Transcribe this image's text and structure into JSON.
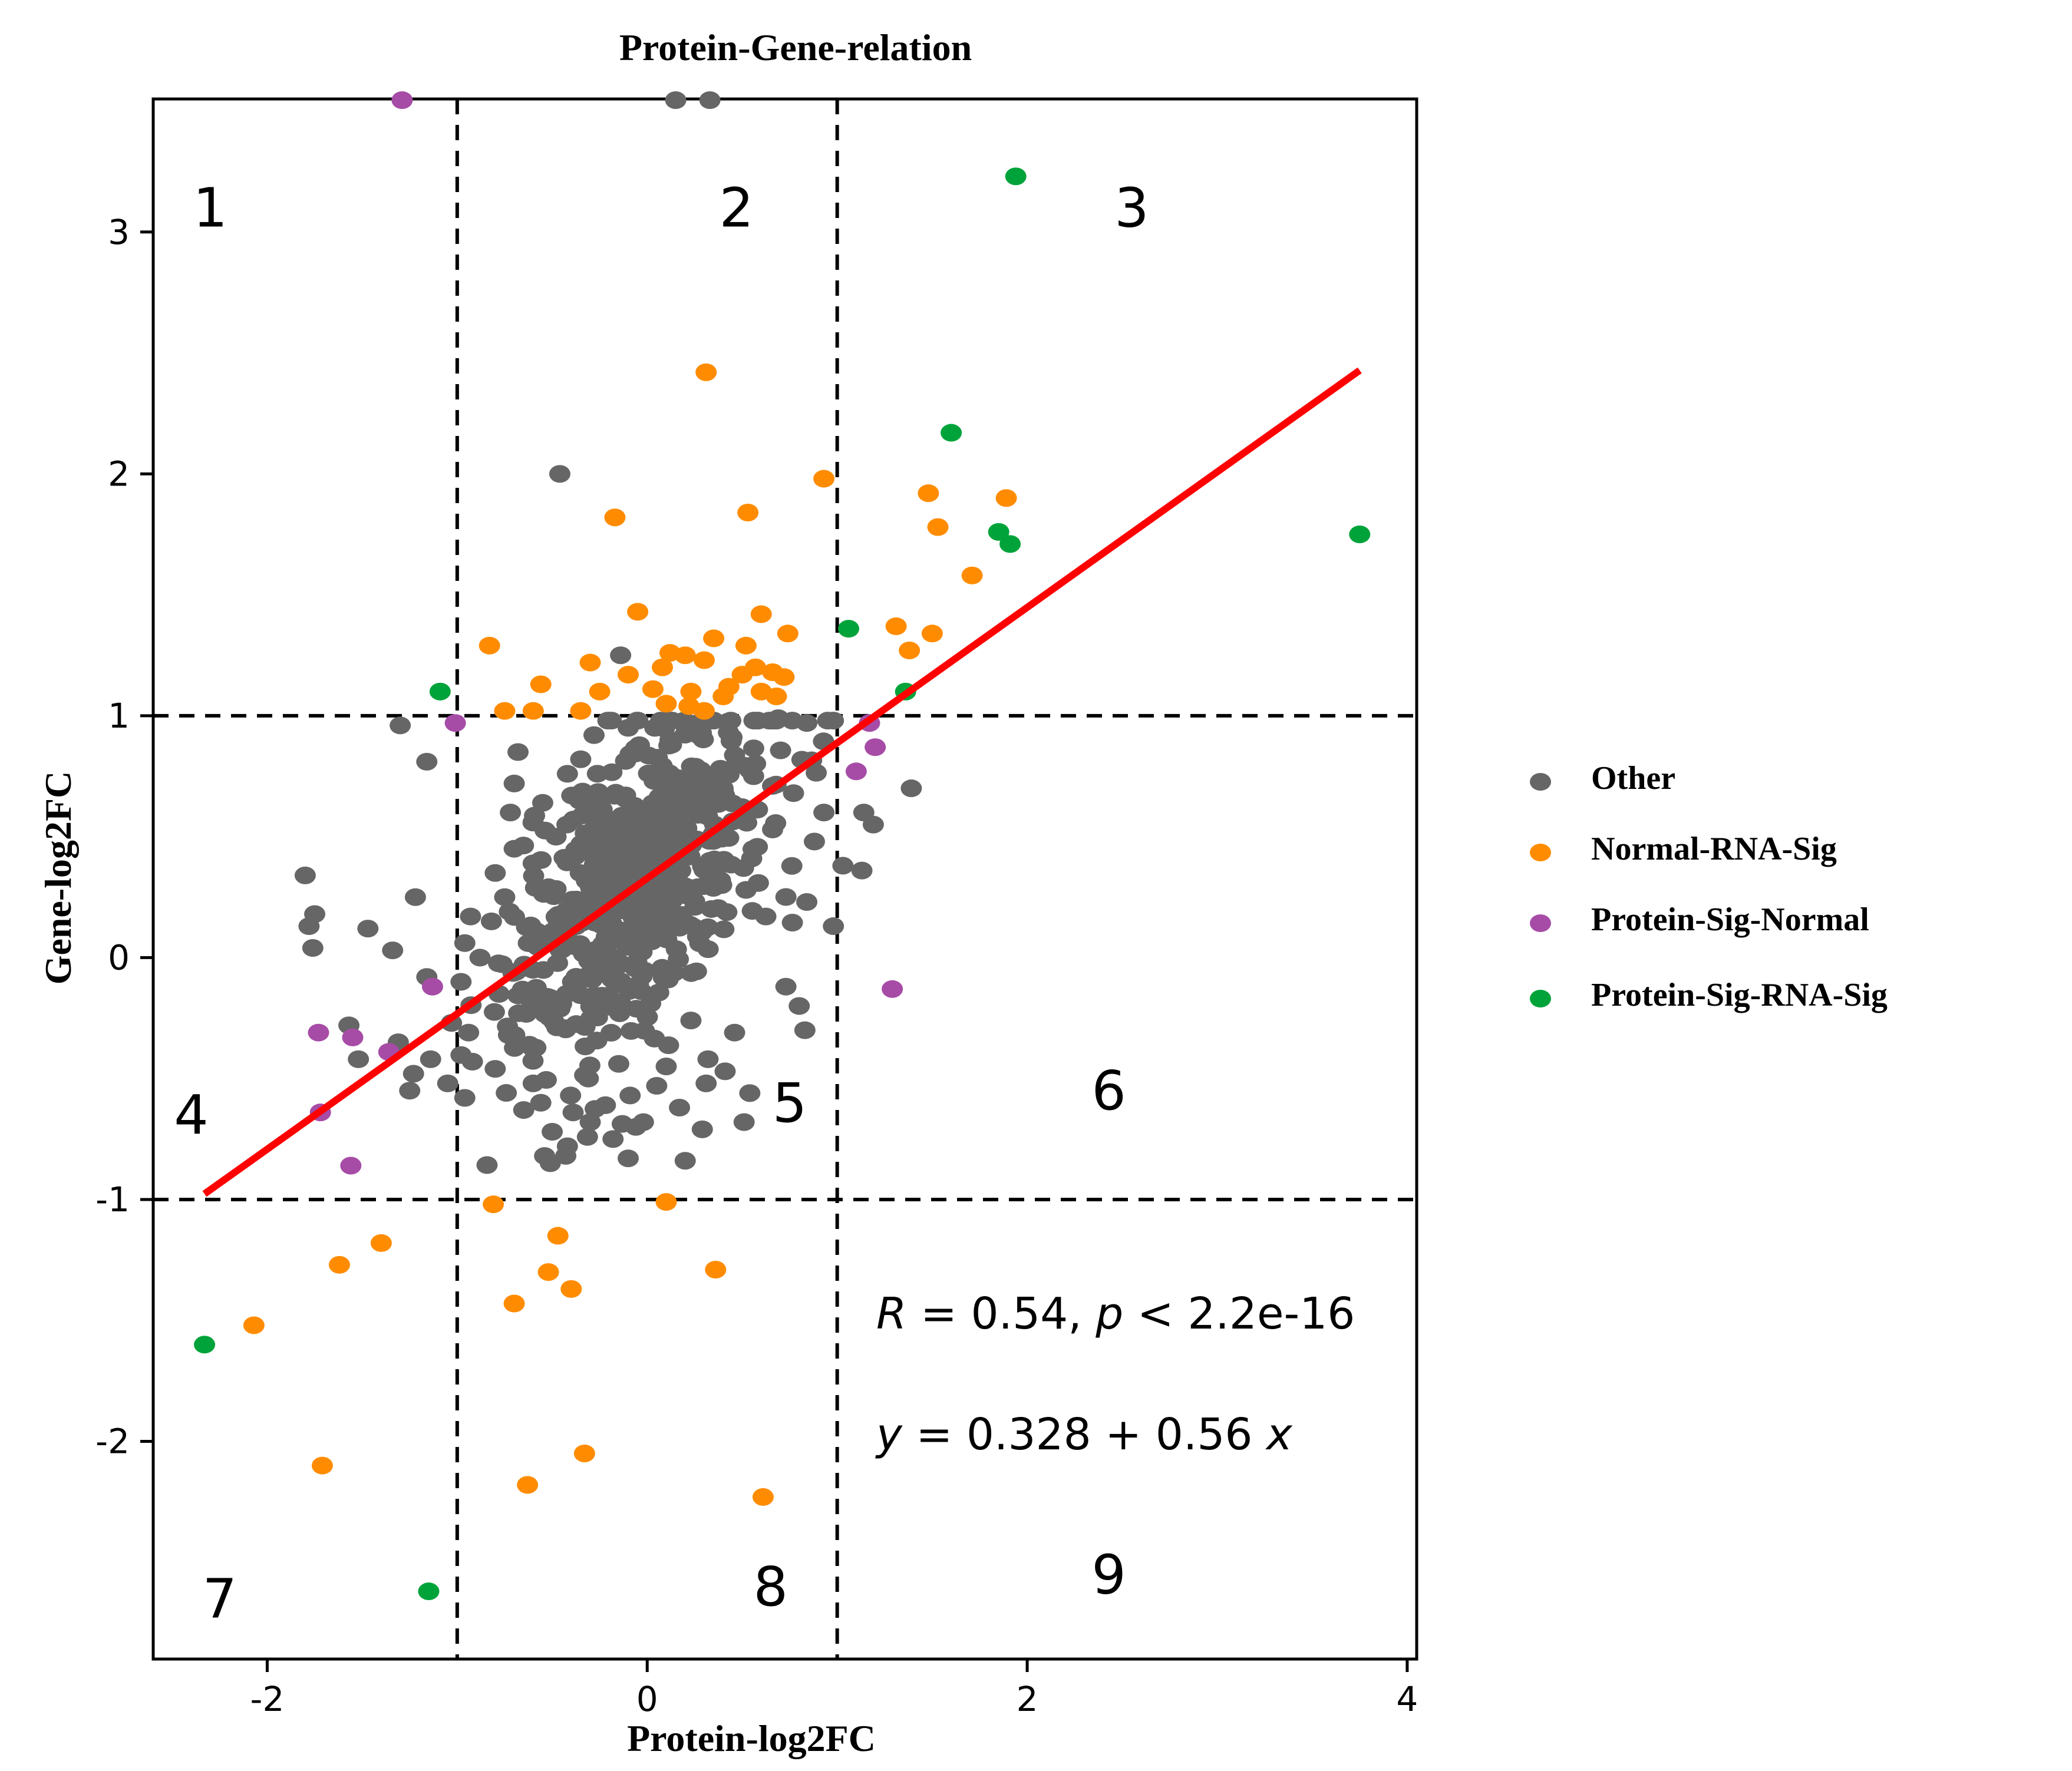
{
  "chart_data": {
    "type": "scatter",
    "title": "Protein-Gene-relation",
    "xlabel": "Protein-log2FC",
    "ylabel": "Gene-log2FC",
    "xlim": [
      -2.6,
      4.05
    ],
    "ylim": [
      -2.9,
      3.55
    ],
    "xticks": [
      -2,
      0,
      2,
      4
    ],
    "yticks": [
      -2,
      -1,
      0,
      1,
      2,
      3
    ],
    "xtick_labels": [
      "-2",
      "0",
      "2",
      "4"
    ],
    "ytick_labels": [
      "-2",
      "-1",
      "0",
      "1",
      "2",
      "3"
    ],
    "grid": false,
    "thresholds": {
      "x": [
        -1,
        1
      ],
      "y": [
        -1,
        1
      ]
    },
    "legend_position": "right",
    "colors": {
      "Other": "#666666",
      "Normal-RNA-Sig": "#ff8c00",
      "Protein-Sig-Normal": "#a64ca6",
      "Protein-Sig-RNA-Sig": "#00a33a",
      "regression": "#ff0000",
      "threshold": "#000000"
    },
    "regression": {
      "intercept": 0.328,
      "slope": 0.56,
      "x_range": [
        -2.33,
        3.75
      ]
    },
    "annotations": {
      "stats_R_symbol": "R",
      "stats_R_rest": " = 0.54, ",
      "stats_p_symbol": "p",
      "stats_p_rest": " < 2.2e-16",
      "eq_y_symbol": "y",
      "eq_mid": " = 0.328 + 0.56 ",
      "eq_x_symbol": "x"
    },
    "quadrant_labels": [
      {
        "text": "1",
        "x": -2.3,
        "y": 3.1
      },
      {
        "text": "2",
        "x": 0.47,
        "y": 3.1
      },
      {
        "text": "3",
        "x": 2.55,
        "y": 3.1
      },
      {
        "text": "4",
        "x": -2.4,
        "y": -0.65
      },
      {
        "text": "5",
        "x": 0.75,
        "y": -0.6
      },
      {
        "text": "6",
        "x": 2.43,
        "y": -0.55
      },
      {
        "text": "7",
        "x": -2.25,
        "y": -2.65
      },
      {
        "text": "8",
        "x": 0.65,
        "y": -2.6
      },
      {
        "text": "9",
        "x": 2.43,
        "y": -2.55
      }
    ],
    "series": [
      {
        "name": "Normal-RNA-Sig",
        "points": [
          [
            0.31,
            2.42
          ],
          [
            0.93,
            1.98
          ],
          [
            0.53,
            1.84
          ],
          [
            -0.17,
            1.82
          ],
          [
            1.48,
            1.92
          ],
          [
            1.89,
            1.9
          ],
          [
            1.53,
            1.78
          ],
          [
            1.71,
            1.58
          ],
          [
            -0.05,
            1.43
          ],
          [
            0.6,
            1.42
          ],
          [
            0.74,
            1.34
          ],
          [
            1.31,
            1.37
          ],
          [
            1.5,
            1.34
          ],
          [
            0.35,
            1.32
          ],
          [
            0.52,
            1.29
          ],
          [
            1.38,
            1.27
          ],
          [
            -0.83,
            1.29
          ],
          [
            -0.3,
            1.22
          ],
          [
            0.12,
            1.26
          ],
          [
            0.2,
            1.25
          ],
          [
            0.3,
            1.23
          ],
          [
            0.57,
            1.2
          ],
          [
            0.66,
            1.18
          ],
          [
            0.08,
            1.2
          ],
          [
            -0.1,
            1.17
          ],
          [
            0.5,
            1.17
          ],
          [
            0.72,
            1.16
          ],
          [
            -0.56,
            1.13
          ],
          [
            -0.25,
            1.1
          ],
          [
            0.03,
            1.11
          ],
          [
            0.23,
            1.1
          ],
          [
            0.43,
            1.12
          ],
          [
            0.6,
            1.1
          ],
          [
            0.68,
            1.08
          ],
          [
            -0.6,
            1.02
          ],
          [
            -0.75,
            1.02
          ],
          [
            0.1,
            1.05
          ],
          [
            0.22,
            1.04
          ],
          [
            0.3,
            1.02
          ],
          [
            0.4,
            1.08
          ],
          [
            -0.35,
            1.02
          ],
          [
            -0.81,
            -1.02
          ],
          [
            0.1,
            -1.01
          ],
          [
            -0.47,
            -1.15
          ],
          [
            -1.4,
            -1.18
          ],
          [
            -1.62,
            -1.27
          ],
          [
            -0.52,
            -1.3
          ],
          [
            -0.4,
            -1.37
          ],
          [
            -0.7,
            -1.43
          ],
          [
            0.36,
            -1.29
          ],
          [
            -2.07,
            -1.52
          ],
          [
            -1.71,
            -2.1
          ],
          [
            -0.63,
            -2.18
          ],
          [
            -0.33,
            -2.05
          ],
          [
            0.61,
            -2.23
          ]
        ]
      },
      {
        "name": "Protein-Sig-Normal",
        "points": [
          [
            -1.29,
            3.55
          ],
          [
            -1.01,
            0.97
          ],
          [
            1.17,
            0.97
          ],
          [
            1.2,
            0.87
          ],
          [
            1.1,
            0.77
          ],
          [
            1.29,
            -0.13
          ],
          [
            -1.13,
            -0.12
          ],
          [
            -1.73,
            -0.31
          ],
          [
            -1.55,
            -0.33
          ],
          [
            -1.36,
            -0.39
          ],
          [
            -1.72,
            -0.64
          ],
          [
            -1.56,
            -0.86
          ]
        ]
      },
      {
        "name": "Protein-Sig-RNA-Sig",
        "points": [
          [
            1.94,
            3.23
          ],
          [
            1.6,
            2.17
          ],
          [
            1.85,
            1.76
          ],
          [
            1.91,
            1.71
          ],
          [
            3.75,
            1.75
          ],
          [
            1.06,
            1.36
          ],
          [
            1.36,
            1.1
          ],
          [
            -1.09,
            1.1
          ],
          [
            -2.33,
            -1.6
          ],
          [
            -1.15,
            -2.62
          ]
        ]
      },
      {
        "name": "Other",
        "points": [
          [
            0.15,
            3.55
          ],
          [
            0.33,
            3.55
          ],
          [
            -0.46,
            2.0
          ],
          [
            -0.14,
            1.25
          ],
          [
            -1.3,
            0.96
          ],
          [
            -1.16,
            0.81
          ],
          [
            1.39,
            0.7
          ],
          [
            1.14,
            0.6
          ],
          [
            1.19,
            0.55
          ],
          [
            1.03,
            0.38
          ],
          [
            1.13,
            0.36
          ],
          [
            0.69,
            0.99
          ],
          [
            0.84,
            0.97
          ],
          [
            0.95,
            0.98
          ],
          [
            -0.68,
            0.85
          ],
          [
            -0.7,
            0.72
          ],
          [
            -0.72,
            0.6
          ],
          [
            -1.78,
            0.13
          ],
          [
            -1.8,
            0.34
          ],
          [
            -1.76,
            0.04
          ],
          [
            -1.75,
            0.18
          ],
          [
            -1.47,
            0.12
          ],
          [
            -1.34,
            0.03
          ],
          [
            -1.22,
            0.25
          ],
          [
            -1.16,
            -0.08
          ],
          [
            -1.57,
            -0.28
          ],
          [
            -1.52,
            -0.42
          ],
          [
            -1.31,
            -0.35
          ],
          [
            -1.23,
            -0.48
          ],
          [
            -1.25,
            -0.55
          ],
          [
            -1.14,
            -0.42
          ],
          [
            -1.05,
            -0.52
          ],
          [
            -1.03,
            -0.27
          ],
          [
            -0.96,
            -0.58
          ],
          [
            -0.92,
            -0.43
          ],
          [
            -0.96,
            0.06
          ],
          [
            -0.98,
            -0.1
          ],
          [
            -0.94,
            -0.31
          ],
          [
            -0.93,
            0.17
          ],
          [
            -0.8,
            0.35
          ],
          [
            -0.7,
            0.45
          ],
          [
            -0.62,
            -0.17
          ],
          [
            -0.62,
            -0.36
          ],
          [
            -0.6,
            -0.52
          ],
          [
            -0.56,
            -0.6
          ],
          [
            -0.5,
            -0.72
          ],
          [
            -0.54,
            -0.82
          ],
          [
            -0.51,
            -0.85
          ],
          [
            -0.42,
            -0.78
          ],
          [
            -0.39,
            -0.64
          ],
          [
            -0.3,
            -0.68
          ],
          [
            -0.18,
            -0.75
          ],
          [
            -0.06,
            -0.7
          ],
          [
            -0.1,
            -0.83
          ],
          [
            -0.02,
            -0.68
          ],
          [
            0.17,
            -0.62
          ],
          [
            0.29,
            -0.71
          ],
          [
            0.2,
            -0.84
          ],
          [
            0.31,
            -0.52
          ],
          [
            0.51,
            -0.68
          ],
          [
            0.54,
            -0.56
          ],
          [
            0.83,
            -0.3
          ],
          [
            0.73,
            -0.12
          ],
          [
            0.8,
            -0.2
          ],
          [
            0.52,
            0.28
          ],
          [
            0.55,
            0.41
          ],
          [
            0.66,
            0.53
          ],
          [
            0.84,
            0.23
          ],
          [
            0.98,
            0.13
          ],
          [
            0.88,
            0.48
          ],
          [
            0.93,
            0.6
          ],
          [
            0.77,
            0.68
          ],
          [
            0.66,
            0.71
          ],
          [
            0.56,
            0.75
          ],
          [
            0.47,
            0.8
          ],
          [
            0.4,
            0.69
          ],
          [
            0.27,
            0.92
          ],
          [
            0.12,
            0.9
          ],
          [
            0.04,
            0.95
          ],
          [
            -0.1,
            0.95
          ],
          [
            -0.28,
            0.92
          ],
          [
            -0.35,
            0.82
          ],
          [
            -0.42,
            0.76
          ],
          [
            -0.55,
            0.64
          ],
          [
            -0.48,
            0.5
          ],
          [
            -0.6,
            0.39
          ],
          [
            -0.75,
            0.25
          ],
          [
            -0.82,
            0.15
          ],
          [
            -0.88,
            0.0
          ],
          [
            -0.78,
            -0.15
          ],
          [
            -0.73,
            -0.32
          ],
          [
            -0.8,
            -0.46
          ],
          [
            -0.65,
            -0.63
          ],
          [
            0.05,
            -0.53
          ],
          [
            0.41,
            -0.47
          ],
          [
            0.46,
            -0.31
          ],
          [
            0.32,
            -0.42
          ],
          [
            0.23,
            -0.26
          ],
          [
            0.1,
            -0.45
          ],
          [
            -0.09,
            -0.57
          ],
          [
            -0.22,
            -0.61
          ],
          [
            -0.31,
            -0.5
          ]
        ],
        "cluster": {
          "count": 560,
          "x_mean": -0.05,
          "x_sd": 0.33,
          "y_mean": 0.32,
          "y_sd": 0.38,
          "correlation": 0.58
        }
      }
    ]
  },
  "legend_items": [
    {
      "label": "Other",
      "color": "#666666"
    },
    {
      "label": "Normal-RNA-Sig",
      "color": "#ff8c00"
    },
    {
      "label": "Protein-Sig-Normal",
      "color": "#a64ca6"
    },
    {
      "label": "Protein-Sig-RNA-Sig",
      "color": "#00a33a"
    }
  ]
}
